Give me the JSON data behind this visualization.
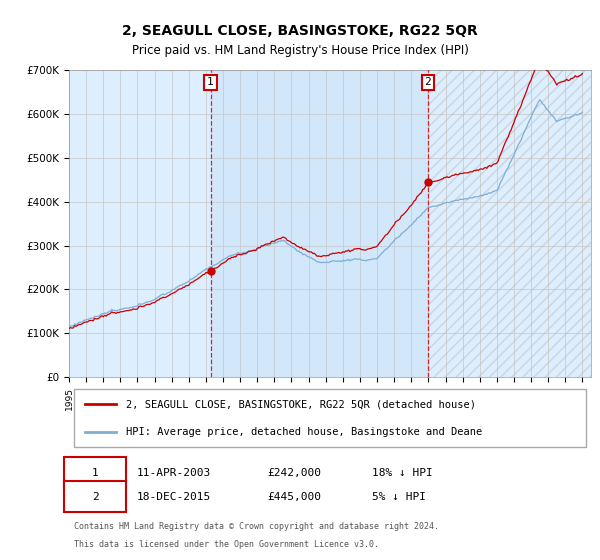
{
  "title": "2, SEAGULL CLOSE, BASINGSTOKE, RG22 5QR",
  "subtitle": "Price paid vs. HM Land Registry's House Price Index (HPI)",
  "ylim": [
    0,
    700000
  ],
  "yticks": [
    0,
    100000,
    200000,
    300000,
    400000,
    500000,
    600000,
    700000
  ],
  "ytick_labels": [
    "£0",
    "£100K",
    "£200K",
    "£300K",
    "£400K",
    "£500K",
    "£600K",
    "£700K"
  ],
  "xlim_start": 1995.0,
  "xlim_end": 2025.5,
  "plot_bg_color": "#ddeeff",
  "fig_bg_color": "#ffffff",
  "grid_color": "#cccccc",
  "hpi_color": "#7bafd4",
  "price_color": "#cc0000",
  "transaction1_year": 2003.27,
  "transaction1_price": 242000,
  "transaction1_date": "11-APR-2003",
  "transaction1_hpi_pct": "18% ↓ HPI",
  "transaction2_year": 2015.96,
  "transaction2_price": 445000,
  "transaction2_date": "18-DEC-2015",
  "transaction2_hpi_pct": "5% ↓ HPI",
  "legend_line1": "2, SEAGULL CLOSE, BASINGSTOKE, RG22 5QR (detached house)",
  "legend_line2": "HPI: Average price, detached house, Basingstoke and Deane",
  "footer1": "Contains HM Land Registry data © Crown copyright and database right 2024.",
  "footer2": "This data is licensed under the Open Government Licence v3.0."
}
